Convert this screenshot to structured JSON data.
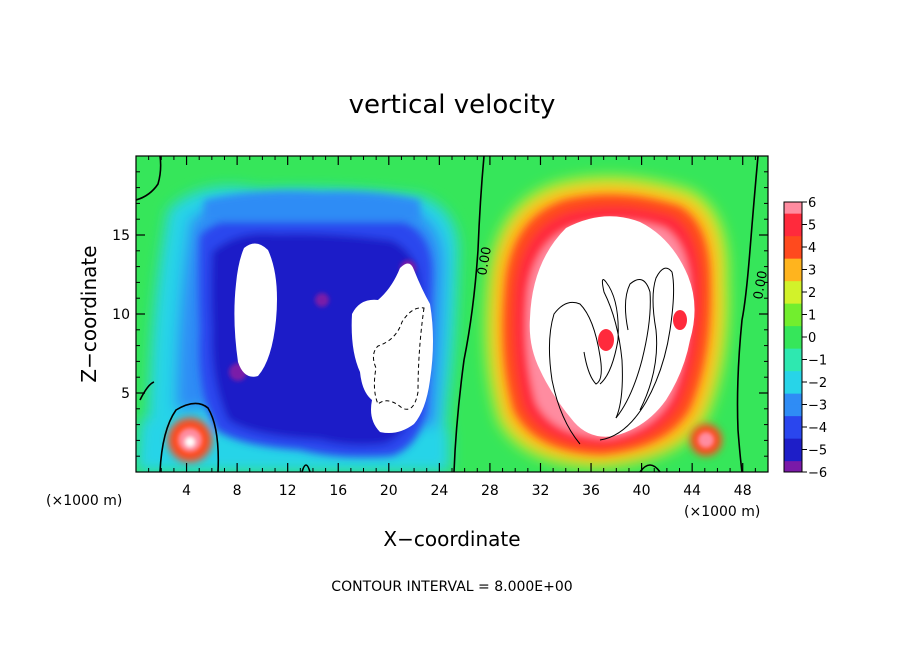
{
  "chart_data": {
    "type": "heatmap",
    "title": "vertical velocity",
    "xlabel": "X−coordinate",
    "ylabel": "Z−coordinate",
    "x_unit_left": "(×1000 m)",
    "x_unit_right": "(×1000 m)",
    "footer": "CONTOUR INTERVAL = 8.000E+00",
    "xlim": [
      0,
      50
    ],
    "ylim": [
      0,
      20
    ],
    "x_ticks": [
      4,
      8,
      12,
      16,
      20,
      24,
      28,
      32,
      36,
      40,
      44,
      48
    ],
    "x_tick_labels": [
      "4",
      "8",
      "12",
      "16",
      "20",
      "24",
      "28",
      "32",
      "36",
      "40",
      "44",
      "48"
    ],
    "y_ticks": [
      5,
      10,
      15
    ],
    "y_tick_labels": [
      "5",
      "10",
      "15"
    ],
    "colorbar": {
      "min": -6,
      "max": 6,
      "ticks": [
        6,
        5,
        4,
        3,
        2,
        1,
        0,
        -1,
        -2,
        -3,
        -4,
        -5,
        -6
      ],
      "tick_labels": [
        "6",
        "5",
        "4",
        "3",
        "2",
        "1",
        "0",
        "−1",
        "−2",
        "−3",
        "−4",
        "−5",
        "−6"
      ]
    },
    "contour_labels": [
      {
        "text": "0.00",
        "x": 27.2,
        "y": 13.0
      },
      {
        "text": "0.00",
        "x": 49.0,
        "y": 12.2
      }
    ],
    "colors": {
      "c_m6": "#7a1aa8",
      "c_m5": "#1e1ec8",
      "c_m4": "#2a46ee",
      "c_m3": "#2f8cf5",
      "c_m2": "#28d4e8",
      "c_m1": "#2ee8b0",
      "c_0": "#36e65a",
      "c_1": "#72ee2e",
      "c_2": "#d2f22a",
      "c_3": "#ffb41e",
      "c_4": "#ff4a1e",
      "c_5": "#ff2a3c",
      "c_6": "#ff8ca0",
      "saturated": "#ffffff",
      "contour": "#000000"
    }
  }
}
